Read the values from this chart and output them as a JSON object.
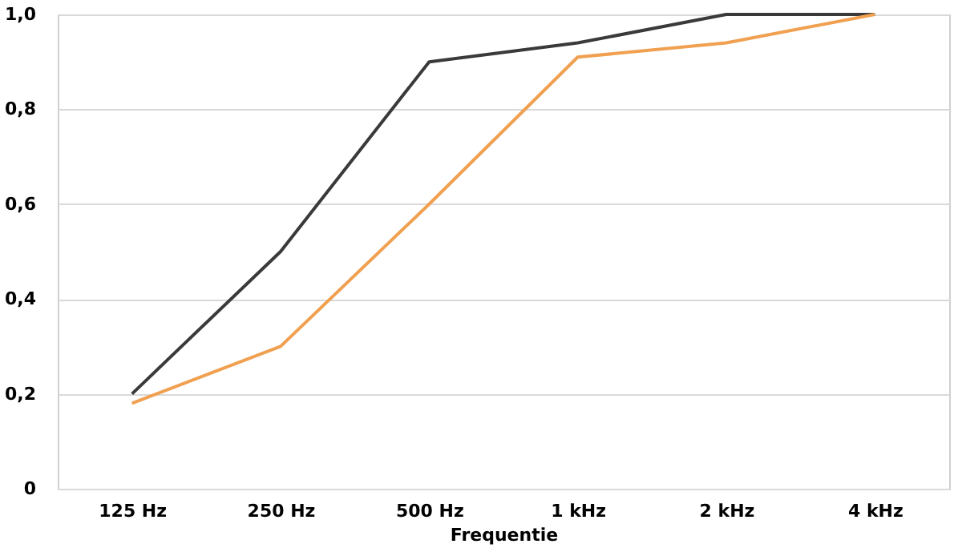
{
  "chart_data": {
    "type": "line",
    "xlabel": "Frequentie",
    "categories": [
      "125 Hz",
      "250 Hz",
      "500 Hz",
      "1 kHz",
      "2 kHz",
      "4 kHz"
    ],
    "series": [
      {
        "color": "#3a3a3a",
        "values": [
          0.2,
          0.5,
          0.9,
          0.94,
          1.0,
          1.0
        ]
      },
      {
        "color": "#f0a050",
        "values": [
          0.18,
          0.3,
          0.6,
          0.91,
          0.94,
          1.0
        ]
      }
    ],
    "ylim": [
      0,
      1
    ],
    "yticks": [
      {
        "value": 0,
        "label": "0"
      },
      {
        "value": 0.2,
        "label": "0,2"
      },
      {
        "value": 0.4,
        "label": "0,4"
      },
      {
        "value": 0.6,
        "label": "0,6"
      },
      {
        "value": 0.8,
        "label": "0,8"
      },
      {
        "value": 1,
        "label": "1,0"
      }
    ],
    "grid": "y",
    "marker": "none",
    "line_style": "solid"
  }
}
